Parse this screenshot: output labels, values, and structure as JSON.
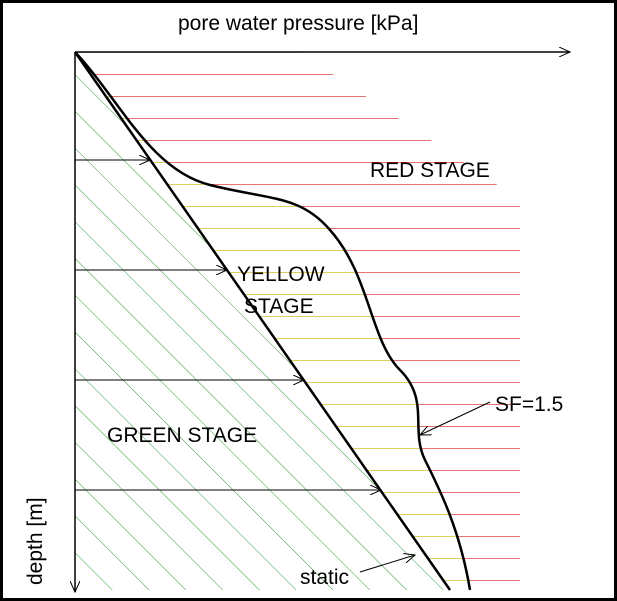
{
  "axes": {
    "x_label": "pore water pressure [kPa]",
    "y_label": "depth [m]"
  },
  "stages": {
    "red": "RED STAGE",
    "yellow": [
      "YELLOW",
      "STAGE"
    ],
    "green": "GREEN STAGE"
  },
  "annotations": {
    "sf": "SF=1.5",
    "static": "static"
  }
}
